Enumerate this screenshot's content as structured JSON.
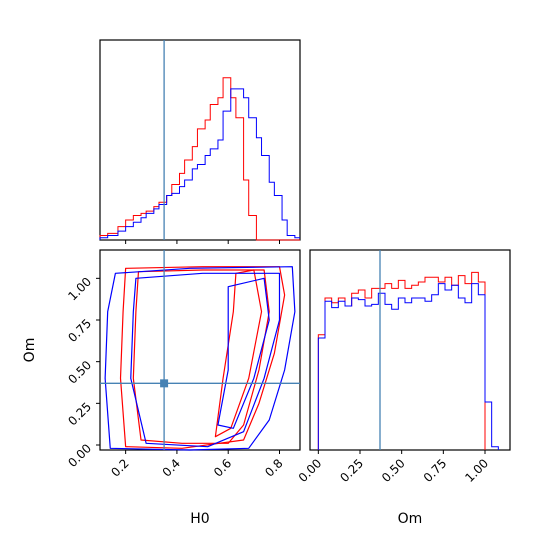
{
  "colors": {
    "red": "#ff0000",
    "blue": "#0000ff",
    "truth": "#4682b4",
    "frame": "#000000"
  },
  "chart_data": [
    {
      "type": "histogram",
      "panel": "H0 marginal",
      "x_range": [
        0.1,
        0.88
      ],
      "series": [
        {
          "name": "red",
          "color": "#ff0000",
          "step_x": [
            0.1,
            0.13,
            0.17,
            0.2,
            0.23,
            0.26,
            0.28,
            0.31,
            0.33,
            0.36,
            0.38,
            0.41,
            0.43,
            0.46,
            0.48,
            0.51,
            0.53,
            0.56,
            0.58,
            0.61,
            0.63,
            0.66,
            0.68,
            0.71,
            0.73,
            0.76,
            0.78,
            0.81,
            0.83,
            0.86,
            0.88
          ],
          "values": [
            0.02,
            0.03,
            0.06,
            0.09,
            0.11,
            0.12,
            0.13,
            0.15,
            0.17,
            0.2,
            0.25,
            0.3,
            0.36,
            0.42,
            0.5,
            0.54,
            0.61,
            0.64,
            0.73,
            0.64,
            0.55,
            0.27,
            0.11,
            0,
            0,
            0,
            0,
            0,
            0,
            0
          ]
        },
        {
          "name": "blue",
          "color": "#0000ff",
          "step_x": [
            0.1,
            0.13,
            0.17,
            0.2,
            0.23,
            0.26,
            0.28,
            0.31,
            0.33,
            0.36,
            0.38,
            0.41,
            0.43,
            0.46,
            0.48,
            0.51,
            0.53,
            0.56,
            0.58,
            0.61,
            0.63,
            0.66,
            0.68,
            0.71,
            0.73,
            0.76,
            0.78,
            0.81,
            0.83,
            0.86,
            0.88
          ],
          "values": [
            0.01,
            0.02,
            0.04,
            0.06,
            0.08,
            0.1,
            0.12,
            0.14,
            0.16,
            0.2,
            0.21,
            0.24,
            0.27,
            0.32,
            0.34,
            0.38,
            0.41,
            0.45,
            0.58,
            0.68,
            0.68,
            0.64,
            0.55,
            0.46,
            0.38,
            0.26,
            0.2,
            0.09,
            0.02,
            0.01
          ]
        }
      ],
      "truth_line": 0.35,
      "ylim": [
        0,
        0.9
      ]
    },
    {
      "type": "contour",
      "panel": "H0 vs Om",
      "xlabel": "H0",
      "ylabel": "Om",
      "xlim": [
        0.1,
        0.88
      ],
      "ylim": [
        -0.03,
        1.17
      ],
      "x_ticks": [
        0.2,
        0.4,
        0.6,
        0.8
      ],
      "y_ticks": [
        0.0,
        0.25,
        0.5,
        0.75,
        1.0
      ],
      "x_tick_labels": [
        "0.2",
        "0.4",
        "0.6",
        "0.8"
      ],
      "y_tick_labels": [
        "0.00",
        "0.25",
        "0.50",
        "0.75",
        "1.00"
      ],
      "truth_point": [
        0.35,
        0.37
      ],
      "series": [
        {
          "name": "red",
          "color": "#ff0000",
          "contours": [
            [
              [
                0.2,
                1.06
              ],
              [
                0.5,
                1.07
              ],
              [
                0.8,
                1.07
              ],
              [
                0.82,
                0.9
              ],
              [
                0.78,
                0.55
              ],
              [
                0.72,
                0.25
              ],
              [
                0.66,
                0.03
              ],
              [
                0.42,
                -0.02
              ],
              [
                0.2,
                -0.01
              ],
              [
                0.18,
                0.4
              ],
              [
                0.19,
                0.8
              ]
            ],
            [
              [
                0.25,
                1.04
              ],
              [
                0.5,
                1.05
              ],
              [
                0.74,
                1.05
              ],
              [
                0.76,
                0.8
              ],
              [
                0.72,
                0.45
              ],
              [
                0.66,
                0.12
              ],
              [
                0.6,
                0.01
              ],
              [
                0.42,
                0.01
              ],
              [
                0.26,
                0.03
              ],
              [
                0.23,
                0.4
              ],
              [
                0.24,
                0.8
              ]
            ],
            [
              [
                0.63,
                1.03
              ],
              [
                0.7,
                1.05
              ],
              [
                0.73,
                0.8
              ],
              [
                0.68,
                0.4
              ],
              [
                0.61,
                0.1
              ],
              [
                0.55,
                0.05
              ],
              [
                0.58,
                0.4
              ],
              [
                0.62,
                0.8
              ]
            ]
          ]
        },
        {
          "name": "blue",
          "color": "#0000ff",
          "contours": [
            [
              [
                0.16,
                1.03
              ],
              [
                0.45,
                1.06
              ],
              [
                0.85,
                1.07
              ],
              [
                0.86,
                0.8
              ],
              [
                0.82,
                0.45
              ],
              [
                0.76,
                0.15
              ],
              [
                0.68,
                -0.02
              ],
              [
                0.45,
                -0.03
              ],
              [
                0.14,
                -0.02
              ],
              [
                0.12,
                0.4
              ],
              [
                0.13,
                0.8
              ]
            ],
            [
              [
                0.24,
                1.0
              ],
              [
                0.5,
                1.03
              ],
              [
                0.8,
                1.03
              ],
              [
                0.8,
                0.75
              ],
              [
                0.74,
                0.4
              ],
              [
                0.66,
                0.08
              ],
              [
                0.52,
                -0.01
              ],
              [
                0.28,
                0.01
              ],
              [
                0.22,
                0.4
              ],
              [
                0.23,
                0.8
              ]
            ],
            [
              [
                0.6,
                0.95
              ],
              [
                0.74,
                1.0
              ],
              [
                0.76,
                0.75
              ],
              [
                0.7,
                0.4
              ],
              [
                0.62,
                0.1
              ],
              [
                0.56,
                0.12
              ],
              [
                0.6,
                0.45
              ],
              [
                0.6,
                0.75
              ]
            ]
          ]
        }
      ]
    },
    {
      "type": "histogram",
      "panel": "Om marginal",
      "xlabel": "Om",
      "x_range": [
        -0.05,
        1.15
      ],
      "x_ticks": [
        0.0,
        0.25,
        0.5,
        0.75,
        1.0
      ],
      "x_tick_labels": [
        "0.00",
        "0.25",
        "0.50",
        "0.75",
        "1.00"
      ],
      "truth_line": 0.37,
      "ylim": [
        0,
        1.25
      ],
      "series": [
        {
          "name": "red",
          "color": "#ff0000",
          "step_x": [
            0.0,
            0.04,
            0.08,
            0.12,
            0.16,
            0.2,
            0.24,
            0.28,
            0.32,
            0.36,
            0.4,
            0.44,
            0.48,
            0.52,
            0.56,
            0.6,
            0.64,
            0.68,
            0.72,
            0.76,
            0.8,
            0.84,
            0.88,
            0.92,
            0.96,
            1.0
          ],
          "values": [
            0.72,
            0.95,
            0.92,
            0.95,
            0.9,
            0.98,
            1.0,
            0.95,
            1.01,
            1.01,
            1.04,
            1.01,
            1.06,
            1.01,
            1.03,
            1.05,
            1.08,
            1.08,
            1.05,
            1.08,
            1.03,
            1.09,
            1.04,
            1.11,
            1.05
          ]
        },
        {
          "name": "blue",
          "color": "#0000ff",
          "step_x": [
            0.0,
            0.04,
            0.08,
            0.12,
            0.16,
            0.2,
            0.24,
            0.28,
            0.32,
            0.36,
            0.4,
            0.44,
            0.48,
            0.52,
            0.56,
            0.6,
            0.64,
            0.68,
            0.72,
            0.76,
            0.8,
            0.84,
            0.88,
            0.92,
            0.96,
            1.0,
            1.04,
            1.08
          ],
          "values": [
            0.7,
            0.93,
            0.89,
            0.93,
            0.9,
            0.95,
            0.94,
            0.9,
            0.91,
            0.98,
            0.91,
            0.88,
            0.95,
            0.92,
            0.95,
            0.95,
            0.93,
            0.97,
            1.04,
            1.0,
            1.03,
            0.95,
            0.92,
            1.04,
            0.97,
            0.3,
            0.02
          ]
        }
      ]
    }
  ]
}
